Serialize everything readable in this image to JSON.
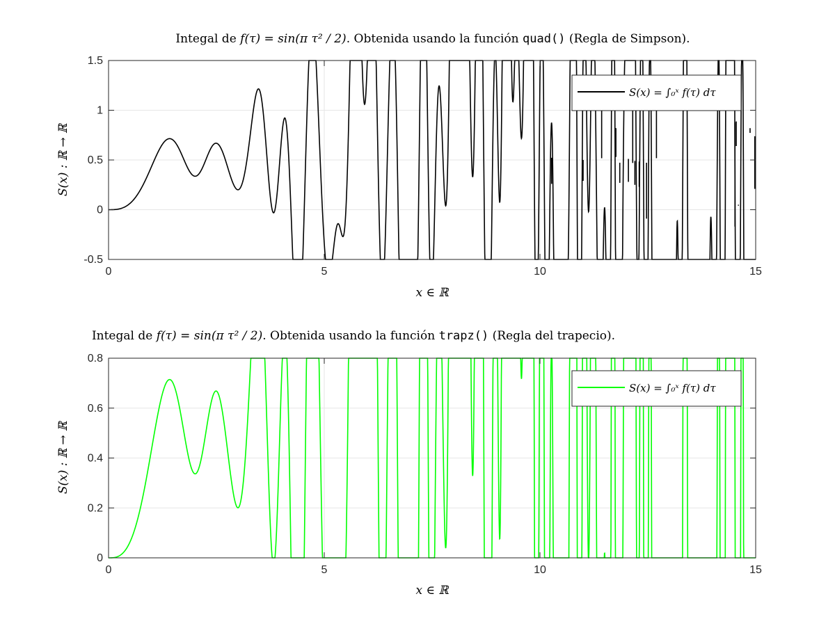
{
  "chart_data": [
    {
      "type": "line",
      "title_parts": {
        "prefix": "Integal de ",
        "formula": "f(τ) = sin(π τ² / 2)",
        "middle": ". Obtenida usando la función ",
        "func": "quad()",
        "suffix": " (Regla de Simpson)."
      },
      "xlabel": "x ∈ ℝ",
      "ylabel": "S(x) : ℝ → ℝ",
      "xlim": [
        0,
        15
      ],
      "ylim": [
        -0.5,
        1.5
      ],
      "x_ticks": [
        0,
        5,
        10,
        15
      ],
      "y_ticks": [
        -0.5,
        0,
        0.5,
        1,
        1.5
      ],
      "x_tick_labels": [
        "0",
        "5",
        "10",
        "15"
      ],
      "y_tick_labels": [
        "-0.5",
        "0",
        "0.5",
        "1",
        "1.5"
      ],
      "grid": true,
      "legend_position": "top-right",
      "series": [
        {
          "name": "S(x) = ∫₀ˣ f(τ) dτ",
          "color": "#000000",
          "function": "fresnel_s",
          "x_range": [
            0,
            15
          ],
          "samples": 3000,
          "spikes": [
            {
              "x": 10.27,
              "y": 0.26
            },
            {
              "x": 11.0,
              "y": 0.29
            },
            {
              "x": 11.43,
              "y": 1.0
            },
            {
              "x": 11.76,
              "y": 0.82
            },
            {
              "x": 11.85,
              "y": 0.27
            },
            {
              "x": 12.05,
              "y": 0.28
            },
            {
              "x": 12.15,
              "y": 1.0
            },
            {
              "x": 12.2,
              "y": 0.25
            },
            {
              "x": 12.3,
              "y": 0.23
            },
            {
              "x": 12.47,
              "y": -0.09
            },
            {
              "x": 12.7,
              "y": 1.0
            },
            {
              "x": 14.52,
              "y": -0.17
            },
            {
              "x": 14.55,
              "y": 0.64
            },
            {
              "x": 14.6,
              "y": 0.05
            },
            {
              "x": 14.87,
              "y": 0.82
            },
            {
              "x": 14.98,
              "y": 0.21
            }
          ]
        }
      ]
    },
    {
      "type": "line",
      "title_parts": {
        "prefix": "Integal de ",
        "formula": "f(τ) = sin(π τ² / 2)",
        "middle": ". Obtenida usando la función ",
        "func": "trapz()",
        "suffix": " (Regla del trapecio)."
      },
      "xlabel": "x ∈ ℝ",
      "ylabel": "S(x) : ℝ → ℝ",
      "xlim": [
        0,
        15
      ],
      "ylim": [
        0,
        0.8
      ],
      "x_ticks": [
        0,
        5,
        10,
        15
      ],
      "y_ticks": [
        0,
        0.2,
        0.4,
        0.6,
        0.8
      ],
      "x_tick_labels": [
        "0",
        "5",
        "10",
        "15"
      ],
      "y_tick_labels": [
        "0",
        "0.2",
        "0.4",
        "0.6",
        "0.8"
      ],
      "grid": true,
      "legend_position": "top-right",
      "series": [
        {
          "name": "S(x) = ∫₀ˣ f(τ) dτ",
          "color": "#00ff00",
          "function": "fresnel_s",
          "x_range": [
            0,
            15
          ],
          "samples": 3000,
          "spikes": []
        }
      ]
    }
  ]
}
